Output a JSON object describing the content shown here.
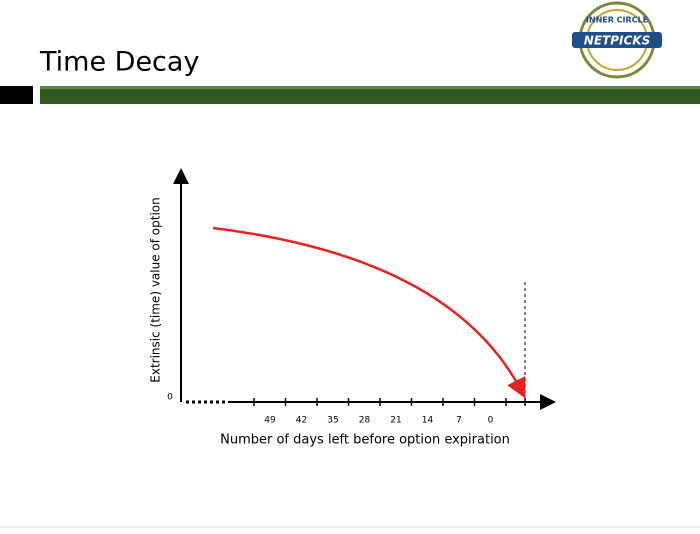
{
  "header": {
    "title": "Time Decay"
  },
  "logo": {
    "top": "INNER CIRCLE",
    "name": "NETPICKS"
  },
  "diagram": {
    "y_label": "Extrinsic (time) value of option",
    "y_origin": "0",
    "x_ticks": [
      "49",
      "42",
      "35",
      "28",
      "21",
      "14",
      "7",
      "0"
    ],
    "x_label": "Number of days left before option expiration"
  }
}
